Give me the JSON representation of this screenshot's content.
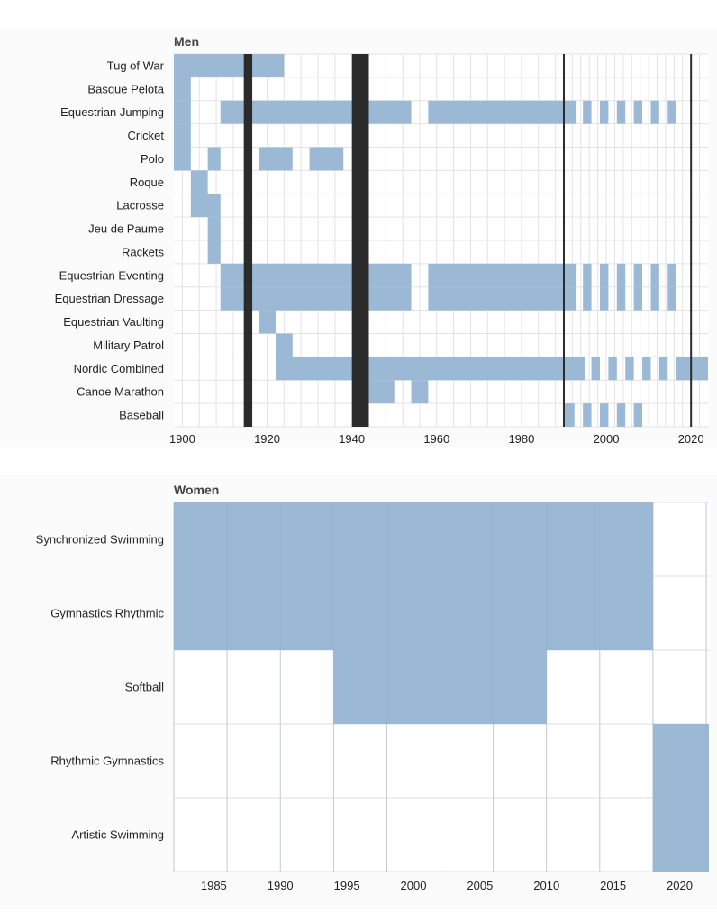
{
  "chart_data": [
    {
      "type": "heatmap",
      "title": "Men",
      "xlim": [
        1898,
        2024
      ],
      "x_ticks": [
        1900,
        1920,
        1940,
        1960,
        1980,
        2000,
        2020
      ],
      "cell_color": "#9bb9d4",
      "war_color": "#2b2b2b",
      "war_periods": [
        [
          1914.5,
          1916.5
        ],
        [
          1940,
          1944
        ]
      ],
      "marker_lines": [
        1990,
        2020
      ],
      "games": [
        1900,
        1904,
        1908,
        1912,
        1920,
        1924,
        1928,
        1932,
        1936,
        1948,
        1952,
        1956,
        1960,
        1964,
        1968,
        1972,
        1976,
        1980,
        1984,
        1988,
        1992,
        1994,
        1996,
        1998,
        2000,
        2002,
        2004,
        2006,
        2008,
        2010,
        2012,
        2014,
        2016,
        2018,
        2020,
        2022
      ],
      "sports": [
        {
          "name": "Tug of War",
          "spans": [
            [
              1898,
              1924
            ]
          ]
        },
        {
          "name": "Basque Pelota",
          "spans": [
            [
              1898,
              1902
            ]
          ]
        },
        {
          "name": "Equestrian Jumping",
          "spans": [
            [
              1898,
              1902
            ],
            [
              1909,
              1954
            ],
            [
              1958,
              1993
            ],
            [
              1994.5,
              1996.5
            ],
            [
              1998.5,
              2000.5
            ],
            [
              2002.5,
              2004.5
            ],
            [
              2006.5,
              2008.5
            ],
            [
              2010.5,
              2012.5
            ],
            [
              2014.5,
              2016.5
            ]
          ]
        },
        {
          "name": "Cricket",
          "spans": [
            [
              1898,
              1902
            ]
          ]
        },
        {
          "name": "Polo",
          "spans": [
            [
              1898,
              1902
            ],
            [
              1906,
              1909
            ],
            [
              1918,
              1926
            ],
            [
              1930,
              1938
            ]
          ]
        },
        {
          "name": "Roque",
          "spans": [
            [
              1902,
              1906
            ]
          ]
        },
        {
          "name": "Lacrosse",
          "spans": [
            [
              1902,
              1909
            ]
          ]
        },
        {
          "name": "Jeu de Paume",
          "spans": [
            [
              1906,
              1909
            ]
          ]
        },
        {
          "name": "Rackets",
          "spans": [
            [
              1906,
              1909
            ]
          ]
        },
        {
          "name": "Equestrian Eventing",
          "spans": [
            [
              1909,
              1954
            ],
            [
              1958,
              1993
            ],
            [
              1994.5,
              1996.5
            ],
            [
              1998.5,
              2000.5
            ],
            [
              2002.5,
              2004.5
            ],
            [
              2006.5,
              2008.5
            ],
            [
              2010.5,
              2012.5
            ],
            [
              2014.5,
              2016.5
            ]
          ]
        },
        {
          "name": "Equestrian Dressage",
          "spans": [
            [
              1909,
              1954
            ],
            [
              1958,
              1993
            ],
            [
              1994.5,
              1996.5
            ],
            [
              1998.5,
              2000.5
            ],
            [
              2002.5,
              2004.5
            ],
            [
              2006.5,
              2008.5
            ],
            [
              2010.5,
              2012.5
            ],
            [
              2014.5,
              2016.5
            ]
          ]
        },
        {
          "name": "Equestrian  Vaulting",
          "spans": [
            [
              1918,
              1922
            ]
          ]
        },
        {
          "name": "Military Patrol",
          "spans": [
            [
              1922,
              1926
            ]
          ]
        },
        {
          "name": "Nordic Combined",
          "spans": [
            [
              1922,
              1995
            ],
            [
              1996.5,
              1998.5
            ],
            [
              2000.5,
              2002.5
            ],
            [
              2004.5,
              2006.5
            ],
            [
              2008.5,
              2010.5
            ],
            [
              2012.5,
              2014.5
            ],
            [
              2016.5,
              2024
            ]
          ]
        },
        {
          "name": "Canoe Marathon",
          "spans": [
            [
              1944,
              1950
            ],
            [
              1954,
              1958
            ]
          ]
        },
        {
          "name": "Baseball",
          "spans": [
            [
              1990,
              1992.5
            ],
            [
              1994.5,
              1996.5
            ],
            [
              1998.5,
              2000.5
            ],
            [
              2002.5,
              2004.5
            ],
            [
              2006.5,
              2008.5
            ]
          ]
        }
      ]
    },
    {
      "type": "heatmap",
      "title": "Women",
      "xlim": [
        1982,
        2022.2
      ],
      "x_ticks": [
        1985,
        1990,
        1995,
        2000,
        2005,
        2010,
        2015,
        2020
      ],
      "cell_color": "#9bb9d4",
      "sports": [
        {
          "name": "Synchronized Swimming",
          "spans": [
            [
              1982,
              2018
            ]
          ]
        },
        {
          "name": "Gymnastics Rhythmic",
          "spans": [
            [
              1982,
              2018
            ]
          ]
        },
        {
          "name": "Softball",
          "spans": [
            [
              1994,
              2010
            ]
          ]
        },
        {
          "name": "Rhythmic Gymnastics",
          "spans": [
            [
              2018,
              2022.2
            ]
          ]
        },
        {
          "name": "Artistic Swimming",
          "spans": [
            [
              2018,
              2022.2
            ]
          ]
        }
      ]
    }
  ]
}
